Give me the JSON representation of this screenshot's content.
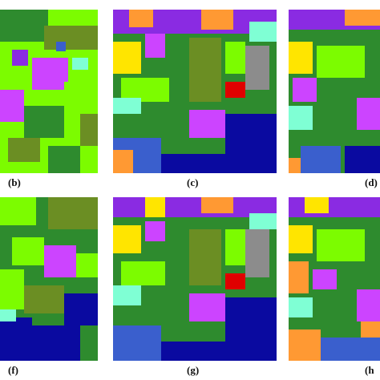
{
  "labels": {
    "b": "(b)",
    "c": "(c)",
    "d": "(d)",
    "f": "(f)",
    "g": "(g)",
    "h": "(h"
  },
  "palette": {
    "lime": "#7CFC00",
    "green": "#2E8B2E",
    "olive": "#6B8E23",
    "darkblue": "#0A0AA0",
    "blue": "#3A5FCD",
    "cyan": "#7FFFD4",
    "magenta": "#CC44FF",
    "purple": "#8A2BE2",
    "orange": "#FF9933",
    "yellow": "#FFE500",
    "red": "#E00000",
    "gray": "#8C8C8C",
    "teal": "#20B2AA",
    "khaki": "#9ACD32"
  }
}
